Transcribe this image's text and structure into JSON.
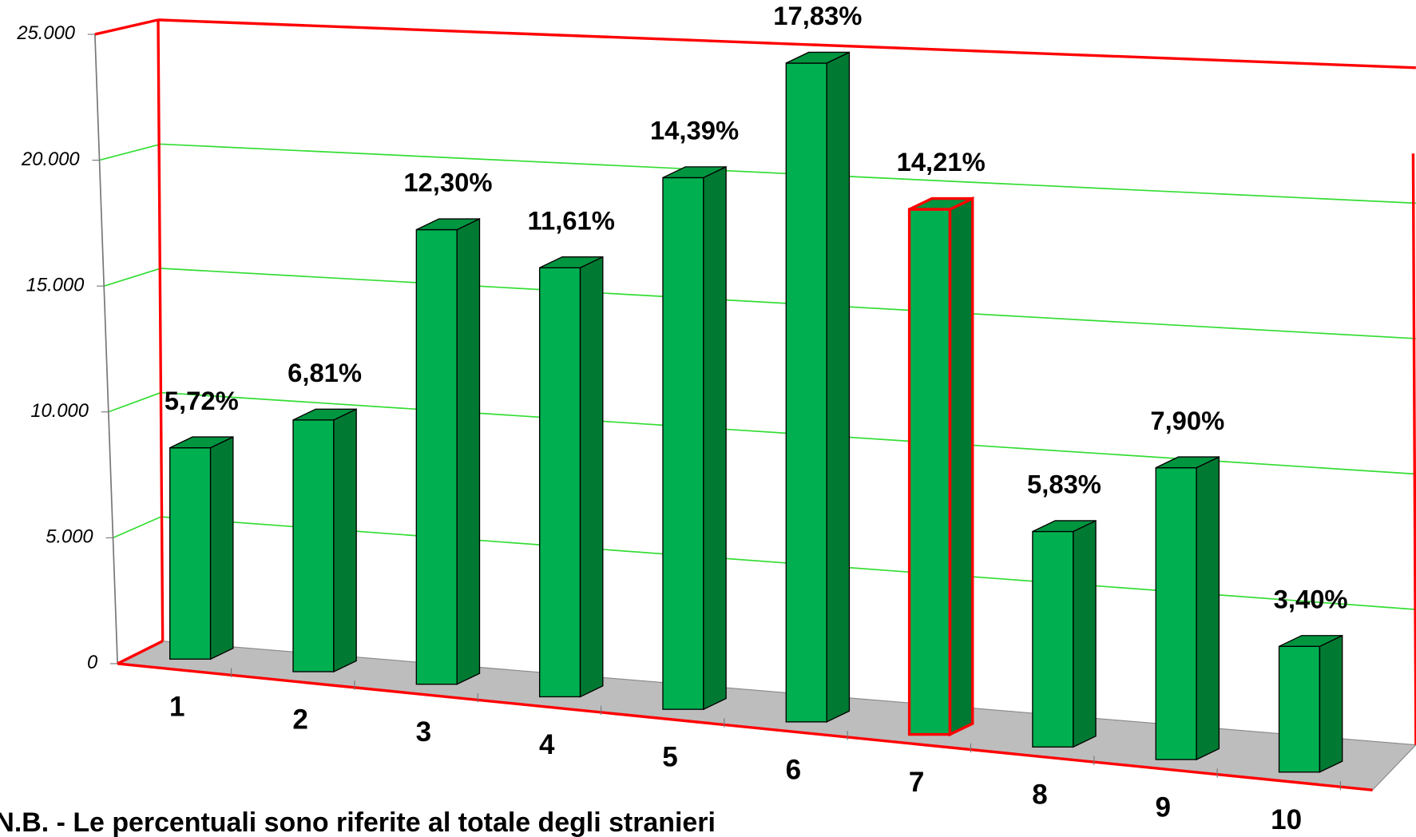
{
  "chart_data": {
    "type": "bar3d",
    "categories": [
      "1",
      "2",
      "3",
      "4",
      "5",
      "6",
      "7",
      "8",
      "9",
      "10"
    ],
    "values": [
      7700,
      9170,
      16560,
      15630,
      19370,
      24000,
      19130,
      7850,
      10630,
      4580
    ],
    "percentages": [
      "5,72%",
      "6,81%",
      "12,30%",
      "11,61%",
      "14,39%",
      "17,83%",
      "14,21%",
      "5,83%",
      "7,90%",
      "3,40%"
    ],
    "color": "#00b050",
    "edge_colors": [
      "#000000",
      "#000000",
      "#000000",
      "#000000",
      "#000000",
      "#000000",
      "#ff0000",
      "#000000",
      "#000000",
      "#000000"
    ],
    "ylim": [
      0,
      25000
    ],
    "yticks": [
      0,
      {
        "value": 5000,
        "label": "5.000"
      },
      {
        "value": 10000,
        "label": "10.000"
      },
      {
        "value": 15000,
        "label": "15.000"
      },
      {
        "value": 20000,
        "label": "20.000"
      },
      {
        "value": 25000,
        "label": "25.000"
      }
    ],
    "grid": true,
    "grid_color": "#33dd33",
    "frame_color": "#ff0000",
    "note": "N.B. - Le percentuali sono riferite al totale degli stranieri"
  }
}
